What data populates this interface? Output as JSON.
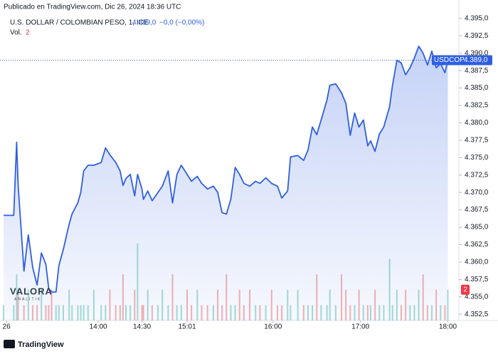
{
  "chart_data": {
    "type": "line",
    "header": "Publicado en TradingView.com, Dic 26, 2024 18:36 UTC",
    "title": "U.S. DOLLAR / COLOMBIAN PESO, 1, ICE",
    "legend_price": "4.389,0",
    "legend_change": "−0,0 (−0,00%)",
    "x": [
      775,
      782,
      784,
      785,
      789,
      792,
      795,
      798,
      801,
      804,
      806,
      808,
      811,
      813,
      816,
      820,
      822,
      826,
      828,
      830,
      833,
      837,
      842,
      845,
      848,
      852,
      855,
      857,
      859,
      862,
      865,
      867,
      870,
      871,
      874,
      877,
      881,
      884,
      888,
      891,
      894,
      897,
      901,
      904,
      908,
      911,
      915,
      919,
      922,
      925,
      928,
      931,
      934,
      937,
      940,
      944,
      948,
      951,
      955,
      959,
      963,
      966,
      970,
      972,
      977,
      981,
      984,
      987,
      990,
      993,
      997,
      999,
      1003,
      1007,
      1010,
      1013,
      1016,
      1019,
      1022,
      1025,
      1027,
      1030,
      1033,
      1036,
      1040,
      1042,
      1045,
      1048,
      1051,
      1054,
      1057,
      1060,
      1063,
      1066,
      1069,
      1072,
      1075,
      1078,
      1080
    ],
    "series": [
      {
        "name": "USDCOP",
        "color": "#2f5fe0",
        "last_label": "4.389,0",
        "values": [
          4366.7,
          4366.7,
          4377.2,
          4371.0,
          4358.7,
          4363.9,
          4359.2,
          4356.7,
          4361.3,
          4359.7,
          4356.2,
          4355.7,
          4355.7,
          4359.5,
          4361.8,
          4365.4,
          4366.9,
          4368.5,
          4370.0,
          4373.1,
          4373.9,
          4373.9,
          4374.3,
          4376.4,
          4375.4,
          4374.3,
          4373.1,
          4371.0,
          4372.0,
          4372.6,
          4369.5,
          4372.6,
          4370.5,
          4369.0,
          4370.2,
          4368.8,
          4370.0,
          4370.9,
          4373.1,
          4368.5,
          4372.6,
          4373.9,
          4372.6,
          4371.6,
          4372.3,
          4371.3,
          4370.5,
          4370.9,
          4370.0,
          4367.1,
          4366.9,
          4369.0,
          4373.6,
          4372.6,
          4371.3,
          4370.9,
          4371.6,
          4371.3,
          4372.1,
          4371.3,
          4370.9,
          4369.2,
          4370.2,
          4375.1,
          4375.3,
          4374.6,
          4376.1,
          4379.4,
          4378.3,
          4380.4,
          4383.3,
          4385.4,
          4385.6,
          4384.3,
          4382.8,
          4378.2,
          4381.4,
          4379.4,
          4380.4,
          4376.7,
          4377.4,
          4375.9,
          4378.4,
          4379.4,
          4382.3,
          4385.4,
          4389.0,
          4388.6,
          4386.9,
          4387.9,
          4389.3,
          4391.0,
          4390.0,
          4388.3,
          4390.3,
          4387.9,
          4388.5,
          4387.2,
          4389.0
        ]
      }
    ],
    "volume": {
      "name": "Vol.",
      "up_color": "#a6dcd4",
      "down_color": "#f5b3b0",
      "label_color": "#f23645",
      "lim": [
        0,
        20
      ],
      "values": [
        1,
        1,
        3,
        2,
        1,
        2,
        1,
        1,
        2,
        1,
        1,
        2,
        1,
        1,
        1,
        2,
        1,
        1,
        1,
        1,
        1,
        2,
        1,
        1,
        2,
        1,
        1,
        3,
        1,
        1,
        2,
        5,
        1,
        1,
        2,
        1,
        1,
        2,
        1,
        3,
        1,
        1,
        2,
        1,
        2,
        1,
        1,
        1,
        2,
        1,
        3,
        1,
        1,
        2,
        1,
        2,
        1,
        1,
        1,
        2,
        1,
        1,
        2,
        1,
        2,
        1,
        1,
        1,
        3,
        1,
        1,
        2,
        1,
        3,
        2,
        1,
        1,
        2,
        1,
        1,
        1,
        2,
        1,
        1,
        4,
        1,
        2,
        1,
        2,
        1,
        1,
        2,
        3,
        1,
        1,
        2,
        1,
        1,
        2
      ]
    },
    "xlim": [
      775,
      1090
    ],
    "xticks": [
      {
        "value": 777,
        "label": "26"
      },
      {
        "value": 840,
        "label": "14:00"
      },
      {
        "value": 870,
        "label": "14:30"
      },
      {
        "value": 901,
        "label": "15:01"
      },
      {
        "value": 960,
        "label": "16:00"
      },
      {
        "value": 1020,
        "label": "17:00"
      },
      {
        "value": 1080,
        "label": "18:00"
      }
    ],
    "ylim": [
      4351.6,
      4395.8
    ],
    "yticks": [
      {
        "value": 4395,
        "label": "4.395,0"
      },
      {
        "value": 4392.5,
        "label": "4.392,5"
      },
      {
        "value": 4390,
        "label": "4.390,0"
      },
      {
        "value": 4387.5,
        "label": "4.387,5"
      },
      {
        "value": 4385,
        "label": "4.385,0"
      },
      {
        "value": 4382.5,
        "label": "4.382,5"
      },
      {
        "value": 4380,
        "label": "4.380,0"
      },
      {
        "value": 4377.5,
        "label": "4.377,5"
      },
      {
        "value": 4375,
        "label": "4.375,0"
      },
      {
        "value": 4372.5,
        "label": "4.372,5"
      },
      {
        "value": 4370,
        "label": "4.370,0"
      },
      {
        "value": 4367.5,
        "label": "4.367,5"
      },
      {
        "value": 4365,
        "label": "4.365,0"
      },
      {
        "value": 4362.5,
        "label": "4.362,5"
      },
      {
        "value": 4360,
        "label": "4.360,0"
      },
      {
        "value": 4357.5,
        "label": "4.357,5"
      },
      {
        "value": 4355,
        "label": "4.355,0"
      },
      {
        "value": 4352.5,
        "label": "4.352,5"
      }
    ],
    "watermark": [
      "VALORA",
      "ANALITIK"
    ],
    "footer": "TradingView"
  }
}
